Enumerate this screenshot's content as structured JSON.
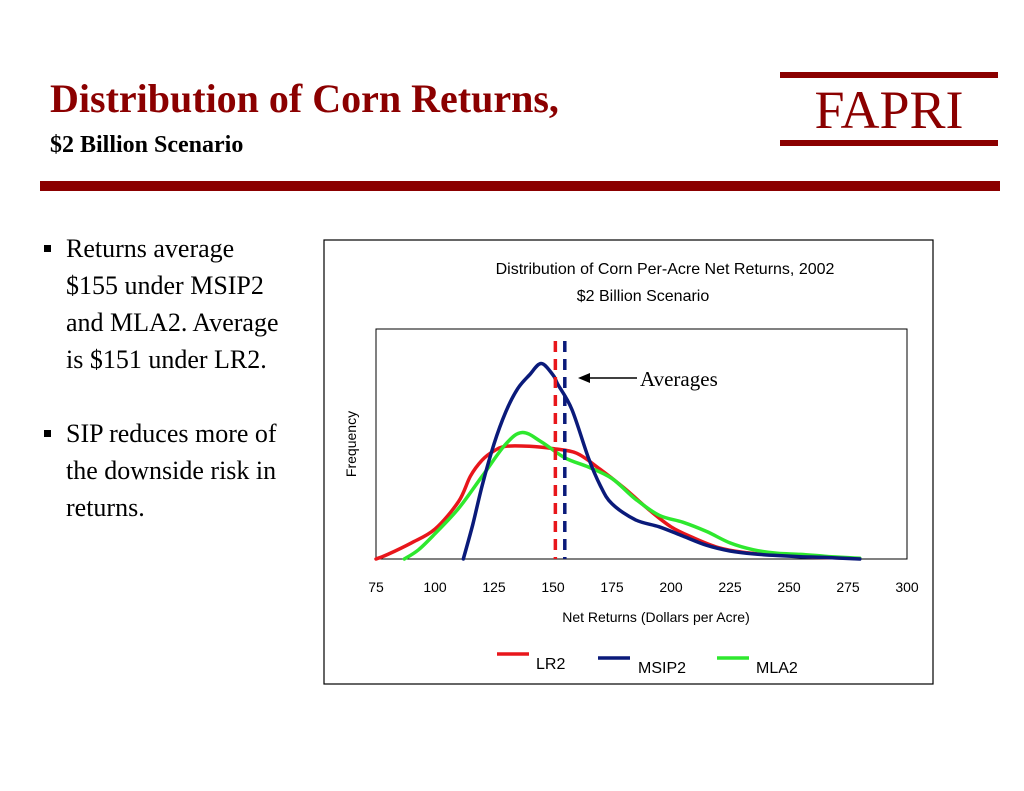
{
  "slide": {
    "title": "Distribution of Corn Returns,",
    "subtitle": "$2 Billion Scenario",
    "logo_text": "FAPRI",
    "bullets": [
      "Returns average $155 under MSIP2 and MLA2. Average is $151 under LR2.",
      "SIP reduces more of the downside risk in returns."
    ]
  },
  "colors": {
    "brand": "#8b0000",
    "lr2": "#e8161b",
    "msip2": "#0a1a7a",
    "mla2": "#2ee82e"
  },
  "chart_data": {
    "type": "line",
    "title": "Distribution of Corn Per-Acre Net Returns, 2002",
    "subtitle": "$2 Billion Scenario",
    "xlabel": "Net Returns (Dollars per Acre)",
    "ylabel": "Frequency",
    "xlim": [
      75,
      300
    ],
    "ylim": [
      0,
      1
    ],
    "x_ticks": [
      "75",
      "100",
      "125",
      "150",
      "175",
      "200",
      "225",
      "250",
      "275",
      "300"
    ],
    "grid": false,
    "legend_position": "bottom",
    "annotation": "Averages",
    "averages": [
      {
        "series": "LR2",
        "x": 151
      },
      {
        "series": "MSIP2",
        "x": 155
      }
    ],
    "series": [
      {
        "name": "LR2",
        "points": [
          [
            75,
            0.0
          ],
          [
            80,
            0.02
          ],
          [
            90,
            0.07
          ],
          [
            100,
            0.13
          ],
          [
            110,
            0.25
          ],
          [
            115,
            0.36
          ],
          [
            120,
            0.43
          ],
          [
            125,
            0.47
          ],
          [
            130,
            0.49
          ],
          [
            140,
            0.49
          ],
          [
            150,
            0.48
          ],
          [
            160,
            0.46
          ],
          [
            170,
            0.39
          ],
          [
            180,
            0.31
          ],
          [
            190,
            0.22
          ],
          [
            200,
            0.14
          ],
          [
            210,
            0.09
          ],
          [
            220,
            0.05
          ],
          [
            230,
            0.03
          ],
          [
            240,
            0.02
          ],
          [
            250,
            0.015
          ],
          [
            260,
            0.008
          ],
          [
            270,
            0.005
          ],
          [
            280,
            0.002
          ]
        ]
      },
      {
        "name": "MSIP2",
        "points": [
          [
            112,
            0.0
          ],
          [
            116,
            0.15
          ],
          [
            120,
            0.32
          ],
          [
            125,
            0.5
          ],
          [
            130,
            0.64
          ],
          [
            135,
            0.74
          ],
          [
            140,
            0.8
          ],
          [
            145,
            0.85
          ],
          [
            150,
            0.8
          ],
          [
            152,
            0.76
          ],
          [
            158,
            0.65
          ],
          [
            165,
            0.44
          ],
          [
            170,
            0.32
          ],
          [
            175,
            0.24
          ],
          [
            185,
            0.17
          ],
          [
            195,
            0.14
          ],
          [
            205,
            0.1
          ],
          [
            215,
            0.06
          ],
          [
            225,
            0.035
          ],
          [
            235,
            0.022
          ],
          [
            245,
            0.015
          ],
          [
            255,
            0.01
          ],
          [
            265,
            0.007
          ],
          [
            280,
            0.0
          ]
        ]
      },
      {
        "name": "MLA2",
        "points": [
          [
            87,
            0.0
          ],
          [
            93,
            0.04
          ],
          [
            100,
            0.11
          ],
          [
            110,
            0.22
          ],
          [
            120,
            0.36
          ],
          [
            130,
            0.5
          ],
          [
            137,
            0.55
          ],
          [
            145,
            0.51
          ],
          [
            155,
            0.44
          ],
          [
            165,
            0.4
          ],
          [
            175,
            0.35
          ],
          [
            185,
            0.26
          ],
          [
            195,
            0.19
          ],
          [
            205,
            0.16
          ],
          [
            215,
            0.12
          ],
          [
            225,
            0.07
          ],
          [
            235,
            0.04
          ],
          [
            245,
            0.025
          ],
          [
            255,
            0.02
          ],
          [
            265,
            0.012
          ],
          [
            275,
            0.006
          ],
          [
            280,
            0.003
          ]
        ]
      }
    ]
  }
}
